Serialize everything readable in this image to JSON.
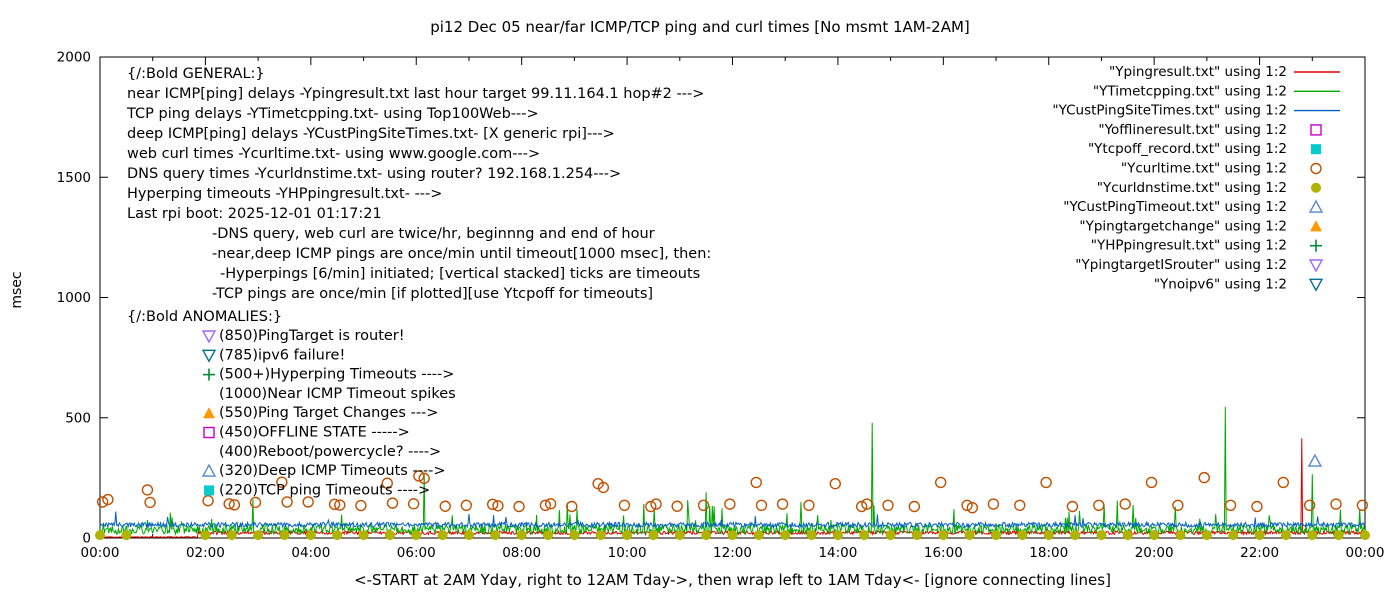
{
  "title": "pi12 Dec 05  near/far ICMP/TCP ping and curl times [No msmt 1AM-2AM]",
  "ylabel": "msec",
  "xlabel": "<-START at 2AM Yday, right to 12AM Tday->, then wrap left to 1AM Tday<- [ignore connecting lines]",
  "axes": {
    "xlim": [
      0,
      24
    ],
    "ylim": [
      0,
      2000
    ],
    "yticks": [
      0,
      500,
      1000,
      1500,
      2000
    ],
    "xtick_labels": [
      "00:00",
      "02:00",
      "04:00",
      "06:00",
      "08:00",
      "10:00",
      "12:00",
      "14:00",
      "16:00",
      "18:00",
      "20:00",
      "22:00",
      "00:00"
    ],
    "grid": false,
    "legend_position": "top-right-outside-ish"
  },
  "legend": [
    {
      "label": "\"Ypingresult.txt\" using 1:2",
      "type": "line",
      "color": "#dd0000"
    },
    {
      "label": "\"YTimetcpping.txt\" using 1:2",
      "type": "line",
      "color": "#00a800"
    },
    {
      "label": "\"YCustPingSiteTimes.txt\" using 1:2",
      "type": "line",
      "color": "#0060c0"
    },
    {
      "label": "\"Yofflineresult.txt\" using 1:2",
      "type": "square-open",
      "color": "#cc00cc"
    },
    {
      "label": "\"Ytcpoff_record.txt\" using 1:2",
      "type": "square-filled",
      "color": "#00cccc"
    },
    {
      "label": "\"Ycurltime.txt\" using 1:2",
      "type": "circle-open",
      "color": "#c05000"
    },
    {
      "label": "\"Ycurldnstime.txt\" using 1:2",
      "type": "circle-filled",
      "color": "#b0b400"
    },
    {
      "label": "\"YCustPingTimeout.txt\" using 1:2",
      "type": "triangle-open",
      "color": "#5588cc"
    },
    {
      "label": "\"Ypingtargetchange\" using 1:2",
      "type": "triangle-filled",
      "color": "#ff9900"
    },
    {
      "label": "\"YHPpingresult.txt\" using 1:2",
      "type": "plus",
      "color": "#008833"
    },
    {
      "label": "\"YpingtargetISrouter\" using 1:2",
      "type": "triangle-down-open",
      "color": "#a066ff"
    },
    {
      "label": "\"Ynoipv6\" using 1:2",
      "type": "triangle-down-open",
      "color": "#007090"
    }
  ],
  "general_block": {
    "lines": [
      {
        "text": "{/:Bold GENERAL:}",
        "indent": 0
      },
      {
        "text": "near ICMP[ping] delays -Ypingresult.txt last hour target 99.11.164.1 hop#2 --->",
        "indent": 0
      },
      {
        "text": "TCP ping delays -YTimetcpping.txt- using Top100Web--->",
        "indent": 0
      },
      {
        "text": "deep ICMP[ping] delays -YCustPingSiteTimes.txt- [X generic rpi]--->",
        "indent": 0
      },
      {
        "text": "web curl times -Ycurltime.txt- using www.google.com--->",
        "indent": 0
      },
      {
        "text": "DNS query times -Ycurldnstime.txt- using router? 192.168.1.254--->",
        "indent": 0
      },
      {
        "text": "Hyperping timeouts -YHPpingresult.txt- --->",
        "indent": 0
      },
      {
        "text": "Last rpi boot: 2025-12-01 01:17:21",
        "indent": 0
      },
      {
        "text": "-DNS query, web curl are twice/hr, beginnng and end of hour",
        "indent": 85
      },
      {
        "text": "-near,deep ICMP pings are once/min until timeout[1000 msec], then:",
        "indent": 85
      },
      {
        "text": "-Hyperpings [6/min] initiated; [vertical stacked] ticks are timeouts",
        "indent": 93
      },
      {
        "text": "-TCP pings are once/min [if plotted][use Ytcpoff for timeouts]",
        "indent": 85
      }
    ]
  },
  "anomalies_block": {
    "header": "{/:Bold ANOMALIES:}",
    "items": [
      {
        "marker": "triangle-down-open",
        "color": "#a066ff",
        "text": "(850)PingTarget is router!"
      },
      {
        "marker": "triangle-down-open",
        "color": "#007090",
        "text": "(785)ipv6 failure!"
      },
      {
        "marker": "plus",
        "color": "#008833",
        "text": "(500+)Hyperping Timeouts ---->"
      },
      {
        "marker": "none",
        "color": "",
        "text": "(1000)Near ICMP Timeout spikes"
      },
      {
        "marker": "triangle-filled",
        "color": "#ff9900",
        "text": "(550)Ping Target Changes --->"
      },
      {
        "marker": "square-open",
        "color": "#cc00cc",
        "text": "(450)OFFLINE STATE ----->"
      },
      {
        "marker": "none",
        "color": "",
        "text": "(400)Reboot/powercycle? ---->"
      },
      {
        "marker": "triangle-open",
        "color": "#5588cc",
        "text": "(320)Deep ICMP Timeouts ---->"
      },
      {
        "marker": "square-filled",
        "color": "#00cccc",
        "text": "(220)TCP ping Timeouts ---->"
      }
    ]
  },
  "chart_data": {
    "type": "line",
    "x_units": "hours 0-24, samples once per minute",
    "y_units": "msec",
    "series": [
      {
        "name": "Ypingresult",
        "color": "#dd0000",
        "seed": 11,
        "segments": [
          {
            "until": 1.85,
            "baseline": 4,
            "noise": 2
          },
          {
            "until": 24,
            "baseline": 22,
            "noise": 7
          }
        ],
        "burst_prob": 0.0,
        "burst_max": 0,
        "spikes": [
          [
            22.8,
            415
          ]
        ]
      },
      {
        "name": "YTimetcpping",
        "color": "#00a800",
        "seed": 22,
        "segments": [
          {
            "until": 24,
            "baseline": 36,
            "noise": 20
          }
        ],
        "burst_prob": 0.03,
        "burst_max": 110,
        "spikes": [
          [
            2.9,
            160
          ],
          [
            6.15,
            265
          ],
          [
            9.05,
            120
          ],
          [
            11.5,
            190
          ],
          [
            13.3,
            150
          ],
          [
            14.65,
            480
          ],
          [
            16.2,
            120
          ],
          [
            19.3,
            155
          ],
          [
            20.4,
            130
          ],
          [
            21.35,
            545
          ],
          [
            23.0,
            265
          ],
          [
            23.9,
            120
          ]
        ]
      },
      {
        "name": "YCustPingSiteTimes",
        "color": "#0060c0",
        "seed": 33,
        "segments": [
          {
            "until": 24,
            "baseline": 55,
            "noise": 10
          }
        ],
        "burst_prob": 0.01,
        "burst_max": 40,
        "spikes": [
          [
            0.3,
            110
          ],
          [
            7.0,
            100
          ],
          [
            18.5,
            95
          ],
          [
            23.1,
            90
          ]
        ]
      }
    ],
    "points": [
      {
        "name": "Ycurltime",
        "marker": "circle-open",
        "color": "#c05000",
        "data": [
          [
            0.05,
            150
          ],
          [
            0.15,
            160
          ],
          [
            0.9,
            200
          ],
          [
            0.95,
            148
          ],
          [
            2.05,
            155
          ],
          [
            2.45,
            142
          ],
          [
            2.55,
            138
          ],
          [
            2.95,
            148
          ],
          [
            3.45,
            232
          ],
          [
            3.55,
            150
          ],
          [
            3.95,
            150
          ],
          [
            4.45,
            140
          ],
          [
            4.55,
            137
          ],
          [
            4.95,
            135
          ],
          [
            5.45,
            228
          ],
          [
            5.55,
            145
          ],
          [
            5.95,
            142
          ],
          [
            6.05,
            258
          ],
          [
            6.15,
            248
          ],
          [
            6.55,
            132
          ],
          [
            6.95,
            136
          ],
          [
            7.45,
            140
          ],
          [
            7.55,
            134
          ],
          [
            7.95,
            131
          ],
          [
            8.45,
            136
          ],
          [
            8.55,
            142
          ],
          [
            8.95,
            131
          ],
          [
            9.45,
            226
          ],
          [
            9.55,
            210
          ],
          [
            9.95,
            136
          ],
          [
            10.45,
            131
          ],
          [
            10.55,
            141
          ],
          [
            10.95,
            132
          ],
          [
            11.45,
            136
          ],
          [
            11.95,
            141
          ],
          [
            12.45,
            231
          ],
          [
            12.55,
            136
          ],
          [
            12.95,
            141
          ],
          [
            13.45,
            136
          ],
          [
            13.95,
            226
          ],
          [
            14.45,
            131
          ],
          [
            14.55,
            141
          ],
          [
            14.95,
            136
          ],
          [
            15.45,
            131
          ],
          [
            15.95,
            231
          ],
          [
            16.45,
            136
          ],
          [
            16.55,
            126
          ],
          [
            16.95,
            141
          ],
          [
            17.45,
            136
          ],
          [
            17.95,
            231
          ],
          [
            18.45,
            131
          ],
          [
            18.95,
            136
          ],
          [
            19.45,
            141
          ],
          [
            19.95,
            231
          ],
          [
            20.45,
            136
          ],
          [
            20.95,
            251
          ],
          [
            21.45,
            136
          ],
          [
            21.95,
            131
          ],
          [
            22.45,
            231
          ],
          [
            22.95,
            136
          ],
          [
            23.45,
            141
          ],
          [
            23.95,
            136
          ]
        ]
      },
      {
        "name": "Ycurldnstime",
        "marker": "circle-filled",
        "color": "#b0b400",
        "generator": {
          "start": 0,
          "end": 24,
          "step": 0.5,
          "y": 12,
          "skip_from": 1,
          "skip_to": 2
        }
      },
      {
        "name": "YCustPingTimeout",
        "marker": "triangle-open",
        "color": "#5588cc",
        "data": [
          [
            23.05,
            320
          ]
        ]
      }
    ]
  }
}
